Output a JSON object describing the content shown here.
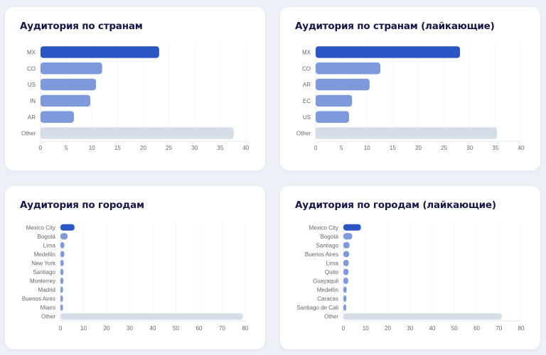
{
  "colors": {
    "primary": "#2a55c4",
    "secondary": "#7f99dd",
    "other": "#d5dee8",
    "title": "#15154a"
  },
  "chart_data": [
    {
      "type": "bar",
      "orientation": "horizontal",
      "title": "Аудитория по странам",
      "categories": [
        "MX",
        "CO",
        "US",
        "IN",
        "AR",
        "Other"
      ],
      "values": [
        23.1,
        12,
        10.8,
        9.7,
        6.5,
        37.6
      ],
      "xlim": [
        0,
        40
      ],
      "xticks": [
        0,
        5,
        10,
        15,
        20,
        25,
        30,
        35,
        40
      ],
      "grid": true
    },
    {
      "type": "bar",
      "orientation": "horizontal",
      "title": "Аудитория по странам (лайкающие)",
      "categories": [
        "MX",
        "CO",
        "AR",
        "EC",
        "US",
        "Other"
      ],
      "values": [
        28.1,
        12.6,
        10.5,
        7.1,
        6.5,
        35.3
      ],
      "xlim": [
        0,
        40
      ],
      "xticks": [
        0,
        5,
        10,
        15,
        20,
        25,
        30,
        35,
        40
      ],
      "grid": true
    },
    {
      "type": "bar",
      "orientation": "horizontal",
      "title": "Аудитория по городам",
      "categories": [
        "Mexico City",
        "Bogotá",
        "Lima",
        "Medellín",
        "New York",
        "Santiago",
        "Monterrey",
        "Madrid",
        "Buenos Aires",
        "Miami",
        "Other"
      ],
      "values": [
        6.1,
        3.1,
        1.7,
        1.7,
        1.4,
        1.3,
        1.3,
        1.1,
        1.1,
        1.1,
        79
      ],
      "xlim": [
        0,
        80
      ],
      "xticks": [
        0,
        10,
        20,
        30,
        40,
        50,
        60,
        70,
        80
      ],
      "grid": true
    },
    {
      "type": "bar",
      "orientation": "horizontal",
      "title": "Аудитория по городам (лайкающие)",
      "categories": [
        "Mexico City",
        "Bogotá",
        "Santiago",
        "Buenos Aires",
        "Lima",
        "Quito",
        "Guayaquil",
        "Medellín",
        "Caracas",
        "Santiago de Cali",
        "Other"
      ],
      "values": [
        7.9,
        4.0,
        2.8,
        2.6,
        2.4,
        2.3,
        2.2,
        1.5,
        1.4,
        1.3,
        71.3
      ],
      "xlim": [
        0,
        80
      ],
      "xticks": [
        0,
        10,
        20,
        30,
        40,
        50,
        60,
        70,
        80
      ],
      "grid": true
    }
  ]
}
